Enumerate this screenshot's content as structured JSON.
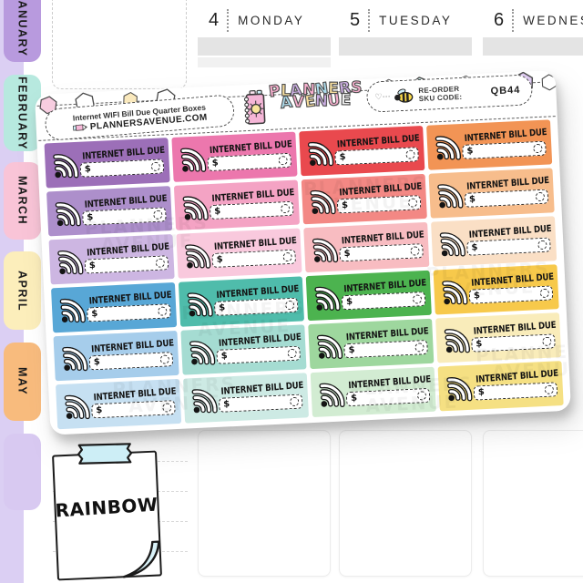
{
  "planner": {
    "strip_color": "#dbcff3",
    "months": [
      {
        "label": "JANUARY",
        "color": "#b89ade"
      },
      {
        "label": "FEBRUARY",
        "color": "#b7e9df"
      },
      {
        "label": "MARCH",
        "color": "#f9c4d7"
      },
      {
        "label": "APRIL",
        "color": "#fceebb"
      },
      {
        "label": "MAY",
        "color": "#f8bb7d"
      },
      {
        "label": "",
        "color": "#d8c9f1"
      }
    ],
    "days": [
      {
        "number": "4",
        "name": "MONDAY"
      },
      {
        "number": "5",
        "name": "TUESDAY"
      },
      {
        "number": "6",
        "name": "WEDNESDAY"
      }
    ]
  },
  "sheet": {
    "product_title": "Internet WIFI Bill Due Quarter Boxes",
    "website": "PLANNERSAVENUE.COM",
    "brand": {
      "line1": "PLANNERS",
      "line2": "AVENUE",
      "letter_colors_line1": [
        "#f6aecd",
        "#f8df9e",
        "#cbaee2",
        "#f6aecd",
        "#aedcec",
        "#f8df9e",
        "#cbaee2",
        "#f6aecd"
      ],
      "letter_colors_line2": [
        "#aedcec",
        "#f6aecd",
        "#f8df9e",
        "#cbaee2",
        "#f6aecd",
        "#f2f2f2"
      ]
    },
    "reorder": {
      "line1": "RE-ORDER",
      "line2": "SKU CODE:"
    },
    "sku": "QB44",
    "sticker": {
      "label": "INTERNET BILL DUE",
      "currency": "$"
    },
    "grid_colors": [
      [
        "#9c6fb8",
        "#ec77ad",
        "#e9494e",
        "#f29455"
      ],
      [
        "#ad8fcb",
        "#f4a3c4",
        "#f38884",
        "#f7bd8c"
      ],
      [
        "#cdb6e2",
        "#f9c9dd",
        "#f8bcc1",
        "#fadfc5"
      ],
      [
        "#58a7d6",
        "#4fbcab",
        "#4cb34f",
        "#f7c94b"
      ],
      [
        "#a6cdeb",
        "#a5dcd2",
        "#9ed79e",
        "#f9ecba"
      ],
      [
        "#c6e0f2",
        "#cdeae4",
        "#d2ecd2",
        "#f5e083"
      ]
    ],
    "watermark": {
      "line1": "PLANNERS",
      "line2": "AVENUE"
    }
  },
  "note": {
    "label": "RAINBOW",
    "tape_color": "#cdeef6",
    "curl_color": "#d9f2f8"
  }
}
